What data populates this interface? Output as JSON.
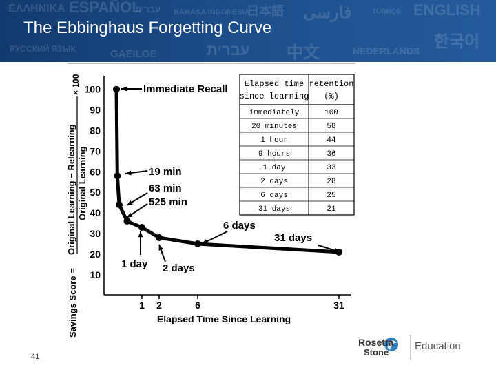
{
  "header": {
    "title": "The Ebbinghaus Forgetting Curve",
    "languages": [
      "ΕΛΛΗΝΙΚΑ",
      "ESPAÑOL",
      "עברית",
      "BAHASA INDONESIA",
      "日本語",
      "فارسی",
      "TÜRKÇE",
      "ENGLISH",
      "РУССКИЙ ЯЗЫК",
      "GAEILGE",
      "עברית",
      "中文",
      "NEDERLANDS",
      "한국어"
    ]
  },
  "chart_data": {
    "type": "line",
    "xlabel": "Elapsed Time Since Learning",
    "ylabel": "Savings Score = (Original Learning − Relearning) / Original Learning × 100",
    "ylabel_parts": {
      "prefix": "Savings Score =",
      "numerator": "Original Learning − Relearning",
      "denominator": "Original Learning",
      "suffix": "× 100"
    },
    "x_ticks": [
      "1",
      "2",
      "6",
      "31"
    ],
    "y_ticks": [
      "100",
      "90",
      "80",
      "70",
      "60",
      "50",
      "40",
      "30",
      "20",
      "10"
    ],
    "ylim": [
      0,
      105
    ],
    "grid": false,
    "series": [
      {
        "points": [
          {
            "t_hours": 0,
            "y": 100
          },
          {
            "t_hours": 0.33,
            "y": 58
          },
          {
            "t_hours": 1,
            "y": 44
          },
          {
            "t_hours": 9,
            "y": 36
          },
          {
            "t_hours": 24,
            "y": 33
          },
          {
            "t_hours": 48,
            "y": 28
          },
          {
            "t_hours": 144,
            "y": 25
          },
          {
            "t_hours": 744,
            "y": 21
          }
        ]
      }
    ],
    "annotations": [
      "Immediate Recall",
      "19 min",
      "63 min",
      "525 min",
      "1 day",
      "2 days",
      "6 days",
      "31 days"
    ],
    "table": {
      "headers": [
        "Elapsed time since learning",
        "retention (%)"
      ],
      "rows": [
        [
          "immediately",
          "100"
        ],
        [
          "20 minutes",
          "58"
        ],
        [
          "1 hour",
          "44"
        ],
        [
          "9 hours",
          "36"
        ],
        [
          "1 day",
          "33"
        ],
        [
          "2 days",
          "28"
        ],
        [
          "6 days",
          "25"
        ],
        [
          "31 days",
          "21"
        ]
      ]
    }
  },
  "footer": {
    "slide_number": "41",
    "logo_rosetta": "Rosetta",
    "logo_stone": "Stone",
    "logo_education": "Education",
    "brand_color": "#1a6fb5"
  }
}
